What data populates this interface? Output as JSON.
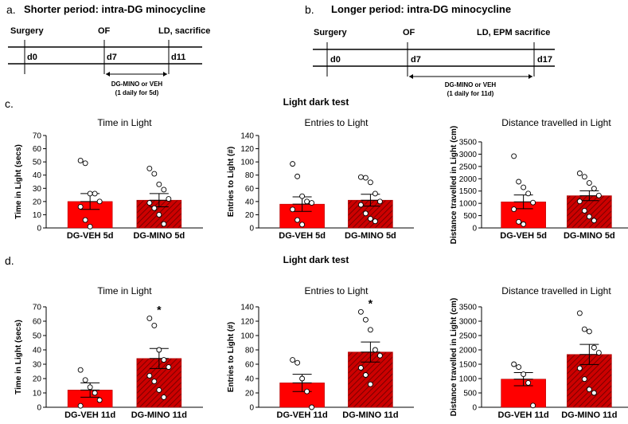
{
  "timelines": [
    {
      "letter": "a.",
      "title": "Shorter period: intra-DG minocycline",
      "events": [
        "Surgery",
        "OF",
        "LD, sacrifice"
      ],
      "days": [
        "d0",
        "d7",
        "d11"
      ],
      "treatment": [
        "DG-MINO or VEH",
        "(1 daily for 5d)"
      ]
    },
    {
      "letter": "b.",
      "title": "Longer period: intra-DG minocycline",
      "events": [
        "Surgery",
        "OF",
        "LD, EPM sacrifice"
      ],
      "days": [
        "d0",
        "d7",
        "d17"
      ],
      "treatment": [
        "DG-MINO or VEH",
        "(1 daily for 11d)"
      ]
    }
  ],
  "sections": [
    {
      "letter": "c.",
      "heading": "Light dark test"
    },
    {
      "letter": "d.",
      "heading": "Light dark test"
    }
  ],
  "colors": {
    "veh": "#ff0000",
    "mino": "#cc0000",
    "hatch": "#660000",
    "axis": "#000000"
  },
  "chart_data": [
    {
      "type": "bar",
      "panel": "c",
      "title": "Time in Light",
      "ylabel": "Time in Light (secs)",
      "categories": [
        "DG-VEH 5d",
        "DG-MINO 5d"
      ],
      "values": [
        20,
        21
      ],
      "sem": [
        6,
        5
      ],
      "ylim": [
        0,
        70
      ],
      "ticks": [
        0,
        10,
        20,
        30,
        40,
        50,
        60,
        70
      ],
      "points": [
        [
          51,
          49,
          26,
          26,
          20,
          16,
          6,
          1
        ],
        [
          45,
          41,
          33,
          29,
          22,
          19,
          15,
          10,
          3
        ]
      ],
      "significance": [
        "",
        ""
      ]
    },
    {
      "type": "bar",
      "panel": "c",
      "title": "Entries to Light",
      "ylabel": "Entries to Light (#)",
      "categories": [
        "DG-VEH 5d",
        "DG-MINO 5d"
      ],
      "values": [
        36,
        42
      ],
      "sem": [
        11,
        9
      ],
      "ylim": [
        0,
        140
      ],
      "ticks": [
        0,
        20,
        40,
        60,
        80,
        100,
        120,
        140
      ],
      "points": [
        [
          97,
          78,
          48,
          40,
          38,
          28,
          12,
          5
        ],
        [
          77,
          76,
          69,
          52,
          40,
          35,
          22,
          14,
          10
        ]
      ],
      "significance": [
        "",
        ""
      ]
    },
    {
      "type": "bar",
      "panel": "c",
      "title": "Distance travelled in Light",
      "ylabel": "Distance travelled in Light (cm)",
      "categories": [
        "DG-VEH 5d",
        "DG-MINO 5d"
      ],
      "values": [
        1060,
        1310
      ],
      "sem": [
        280,
        200
      ],
      "ylim": [
        0,
        3500
      ],
      "ticks": [
        0,
        500,
        1000,
        1500,
        2000,
        2500,
        3000,
        3500
      ],
      "points": [
        [
          2920,
          1880,
          1650,
          1400,
          1030,
          760,
          250,
          150
        ],
        [
          2220,
          2080,
          1830,
          1600,
          1320,
          1080,
          700,
          460,
          300
        ]
      ],
      "significance": [
        "",
        ""
      ]
    },
    {
      "type": "bar",
      "panel": "d",
      "title": "Time in Light",
      "ylabel": "Time in Light (secs)",
      "categories": [
        "DG-VEH 11d",
        "DG-MINO 11d"
      ],
      "values": [
        12,
        34
      ],
      "sem": [
        5,
        7
      ],
      "ylim": [
        0,
        70
      ],
      "ticks": [
        0,
        10,
        20,
        30,
        40,
        50,
        60,
        70
      ],
      "points": [
        [
          26,
          19,
          14,
          10,
          5,
          1
        ],
        [
          62,
          57,
          40,
          33,
          28,
          22,
          18,
          12,
          7
        ]
      ],
      "significance": [
        "",
        "*"
      ]
    },
    {
      "type": "bar",
      "panel": "d",
      "title": "Entries to Light",
      "ylabel": "Entries to Light (#)",
      "categories": [
        "DG-VEH 11d",
        "DG-MINO 11d"
      ],
      "values": [
        34,
        77
      ],
      "sem": [
        12,
        14
      ],
      "ylim": [
        0,
        140
      ],
      "ticks": [
        0,
        20,
        40,
        60,
        80,
        100,
        120,
        140
      ],
      "points": [
        [
          66,
          62,
          40,
          22,
          0
        ],
        [
          133,
          122,
          108,
          80,
          72,
          55,
          45,
          32
        ]
      ],
      "significance": [
        "",
        "*"
      ]
    },
    {
      "type": "bar",
      "panel": "d",
      "title": "Distance travelled in Light",
      "ylabel": "Distance travelled in Light (cm)",
      "categories": [
        "DG-VEH 11d",
        "DG-MINO 11d"
      ],
      "values": [
        980,
        1840
      ],
      "sem": [
        230,
        350
      ],
      "ylim": [
        0,
        3500
      ],
      "ticks": [
        0,
        500,
        1000,
        1500,
        2000,
        2500,
        3000,
        3500
      ],
      "points": [
        [
          1500,
          1400,
          1150,
          850,
          60
        ],
        [
          3280,
          2720,
          2640,
          2080,
          1900,
          1360,
          980,
          620,
          500
        ]
      ],
      "significance": [
        "",
        ""
      ]
    }
  ]
}
